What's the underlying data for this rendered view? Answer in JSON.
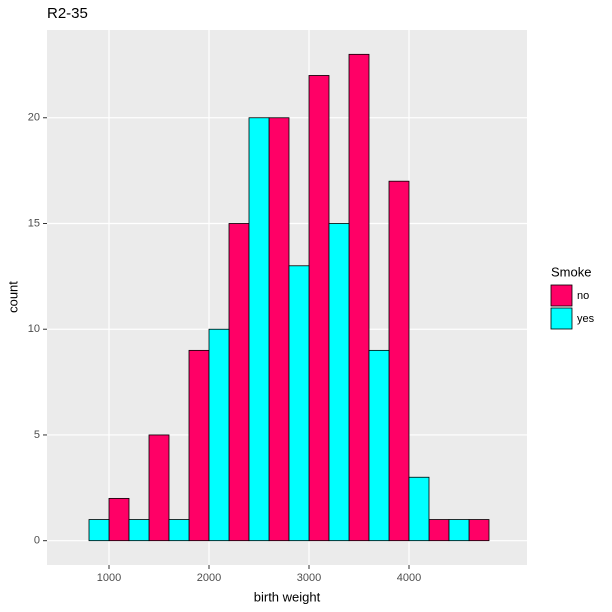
{
  "chart_data": {
    "type": "histogram",
    "title": "R2-35",
    "x_label": "birth weight",
    "y_label": "count",
    "bins": [
      600,
      1000,
      1400,
      1800,
      2200,
      2600,
      3000,
      3400,
      3800,
      4200,
      4600,
      5000
    ],
    "series": [
      {
        "name": "no",
        "color": "#ff0066",
        "values": [
          0,
          2,
          5,
          9,
          15,
          20,
          22,
          23,
          17,
          1,
          1
        ]
      },
      {
        "name": "yes",
        "color": "#00ffff",
        "values": [
          1,
          1,
          1,
          10,
          20,
          13,
          15,
          9,
          3,
          1,
          0
        ]
      }
    ],
    "legend_title": "Smoke",
    "legend_position": "right",
    "xlim": [
      380,
      5180
    ],
    "ylim": [
      -1.15,
      24.15
    ],
    "xticks": [
      1000,
      2000,
      3000,
      4000
    ],
    "yticks": [
      0,
      5,
      10,
      15,
      20
    ],
    "grid": true
  }
}
